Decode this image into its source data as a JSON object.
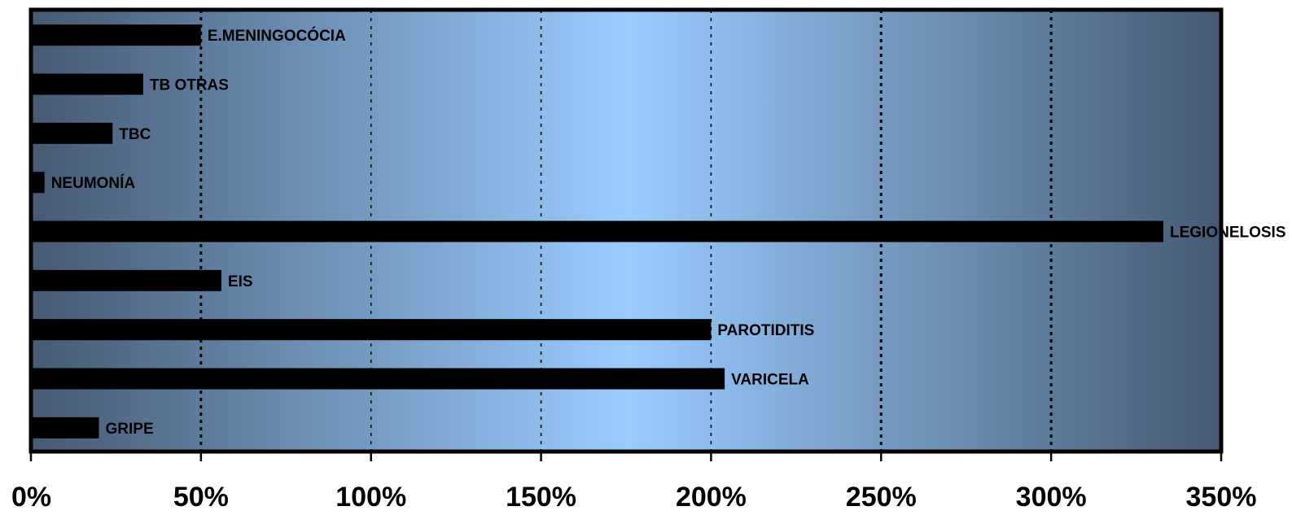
{
  "chart_data": {
    "type": "bar",
    "orientation": "horizontal",
    "categories": [
      "E.MENINGOCÓCIA",
      "TB OTRAS",
      "TBC",
      "NEUMONÍA",
      "LEGIONELOSIS",
      "EIS",
      "PAROTIDITIS",
      "VARICELA",
      "GRIPE"
    ],
    "values": [
      50,
      33,
      24,
      4,
      333,
      56,
      200,
      204,
      20
    ],
    "xlim": [
      0,
      350
    ],
    "x_ticks": [
      0,
      50,
      100,
      150,
      200,
      250,
      300,
      350
    ],
    "x_tick_labels": [
      "0%",
      "50%",
      "100%",
      "150%",
      "200%",
      "250%",
      "300%",
      "350%"
    ],
    "title": "",
    "xlabel": "",
    "ylabel": "",
    "grid": "vertical dotted",
    "legend": "none",
    "data_labels": "category name at bar end",
    "colors": {
      "bar": "#000000",
      "background_edge": "#465a72",
      "background_center": "#99ccff",
      "frame": "#000000"
    }
  }
}
